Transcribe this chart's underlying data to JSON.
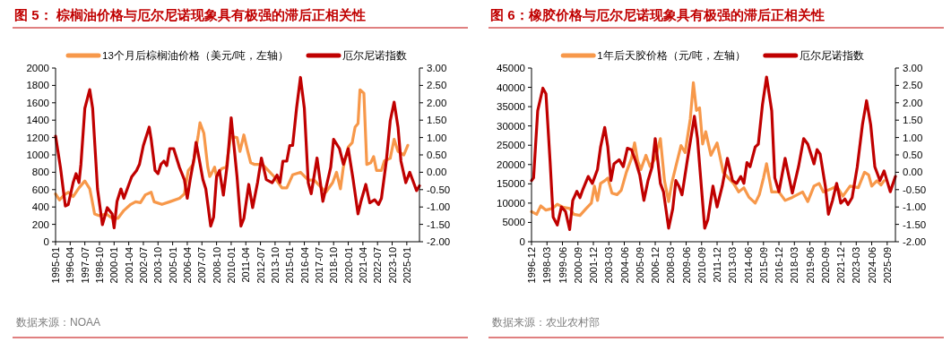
{
  "chart_data": [
    {
      "type": "line",
      "title": "图 5：  棕榈油价格与厄尔尼诺现象具有极强的滞后正相关性",
      "legend": "top",
      "xlim": [
        "1995-01",
        "2026-02"
      ],
      "xticks": [
        "1995-01",
        "1996-04",
        "1997-07",
        "1998-10",
        "2000-01",
        "2001-04",
        "2002-07",
        "2003-10",
        "2005-01",
        "2006-04",
        "2007-07",
        "2008-10",
        "2010-01",
        "2011-04",
        "2012-07",
        "2013-10",
        "2015-01",
        "2016-04",
        "2017-07",
        "2018-10",
        "2020-01",
        "2021-04",
        "2022-07",
        "2023-10",
        "2025-01"
      ],
      "ylim": [
        0,
        2000
      ],
      "yticks": [
        0,
        200,
        400,
        600,
        800,
        1000,
        1200,
        1400,
        1600,
        1800,
        2000
      ],
      "y2lim": [
        -2,
        3
      ],
      "y2ticks": [
        {
          "value": -2,
          "label": "-2.00"
        },
        {
          "value": -1.5,
          "label": "-1.50"
        },
        {
          "value": -1,
          "label": "-1.00"
        },
        {
          "value": -0.5,
          "label": "-0.50"
        },
        {
          "value": 0,
          "label": "0.00"
        },
        {
          "value": 0.5,
          "label": "0.50"
        },
        {
          "value": 1,
          "label": "1.00"
        },
        {
          "value": 1.5,
          "label": "1.50"
        },
        {
          "value": 2,
          "label": "2.00"
        },
        {
          "value": 2.5,
          "label": "2.50"
        },
        {
          "value": 3,
          "label": "3.00"
        }
      ],
      "annotations": [
        "数据来源：NOAA"
      ],
      "series": [
        {
          "name": "13个月后棕榈油价格（美元/吨，左轴）",
          "color": "#f7984a",
          "x": [
            "1995-01",
            "1995-05",
            "1995-10",
            "1996-02",
            "1996-07",
            "1997-01",
            "1997-07",
            "1997-12",
            "1998-02",
            "1998-05",
            "1998-10",
            "1999-05",
            "1999-11",
            "2000-05",
            "2000-11",
            "2001-06",
            "2001-11",
            "2002-04",
            "2002-09",
            "2003-03",
            "2003-06",
            "2004-02",
            "2004-10",
            "2005-08",
            "2006-01",
            "2006-05",
            "2006-10",
            "2007-03",
            "2007-05",
            "2007-09",
            "2008-01",
            "2008-03",
            "2008-05",
            "2008-08",
            "2008-10",
            "2009-03",
            "2009-08",
            "2009-12",
            "2010-01",
            "2010-07",
            "2010-10",
            "2011-02",
            "2011-06",
            "2011-09",
            "2012-01",
            "2012-09",
            "2013-03",
            "2013-09",
            "2014-05",
            "2014-10",
            "2015-04",
            "2015-12",
            "2016-08",
            "2017-02",
            "2017-08",
            "2018-02",
            "2018-09",
            "2019-01",
            "2019-05",
            "2019-08",
            "2020-01",
            "2020-05",
            "2020-08",
            "2020-11",
            "2021-01",
            "2021-05",
            "2021-08",
            "2021-12",
            "2022-03",
            "2022-06",
            "2022-11",
            "2023-02",
            "2023-08",
            "2023-12",
            "2024-04",
            "2024-10",
            "2025-02"
          ],
          "values": [
            550,
            480,
            540,
            570,
            520,
            620,
            700,
            610,
            500,
            320,
            300,
            320,
            270,
            270,
            360,
            430,
            460,
            450,
            540,
            570,
            460,
            430,
            460,
            500,
            550,
            820,
            890,
            1210,
            1370,
            1250,
            860,
            750,
            790,
            860,
            750,
            840,
            860,
            1180,
            1210,
            1200,
            1040,
            1230,
            1040,
            910,
            890,
            890,
            820,
            750,
            620,
            620,
            770,
            800,
            710,
            710,
            640,
            570,
            680,
            800,
            610,
            860,
            1090,
            1140,
            1320,
            1360,
            1750,
            1710,
            890,
            910,
            980,
            820,
            820,
            930,
            960,
            1180,
            1040,
            1000,
            1110
          ]
        },
        {
          "name": "厄尔尼诺指数",
          "color": "#c00000",
          "axis": "y2",
          "x": [
            "1995-01",
            "1995-06",
            "1995-11",
            "1996-02",
            "1996-07",
            "1996-10",
            "1997-01",
            "1997-03",
            "1997-07",
            "1997-12",
            "1998-03",
            "1998-08",
            "1999-01",
            "1999-06",
            "1999-11",
            "2000-01",
            "2000-04",
            "2000-08",
            "2000-11",
            "2001-07",
            "2001-12",
            "2002-03",
            "2002-07",
            "2003-01",
            "2003-03",
            "2003-07",
            "2003-10",
            "2004-01",
            "2004-04",
            "2004-07",
            "2004-10",
            "2005-02",
            "2005-08",
            "2006-01",
            "2006-04",
            "2006-07",
            "2006-11",
            "2007-01",
            "2007-04",
            "2007-08",
            "2007-11",
            "2008-04",
            "2008-07",
            "2008-10",
            "2009-01",
            "2009-05",
            "2009-09",
            "2010-01",
            "2010-07",
            "2010-11",
            "2011-02",
            "2011-07",
            "2011-11",
            "2012-04",
            "2012-08",
            "2013-01",
            "2013-07",
            "2013-12",
            "2014-03",
            "2014-06",
            "2014-10",
            "2015-01",
            "2015-04",
            "2015-08",
            "2015-12",
            "2016-04",
            "2016-08",
            "2016-11",
            "2017-05",
            "2017-11",
            "2018-07",
            "2018-10",
            "2019-04",
            "2019-08",
            "2020-01",
            "2020-06",
            "2020-11",
            "2021-02",
            "2021-07",
            "2021-11",
            "2022-04",
            "2022-08",
            "2022-11",
            "2023-04",
            "2023-08",
            "2023-12",
            "2024-04",
            "2024-07",
            "2024-12",
            "2025-04",
            "2025-08",
            "2025-11",
            "2026-02"
          ],
          "values": [
            1.04,
            0.14,
            -0.97,
            -0.93,
            -0.3,
            -0.04,
            -0.3,
            0.23,
            1.84,
            2.38,
            1.84,
            -0.48,
            -1.51,
            -1.02,
            -1.2,
            -1.6,
            -0.84,
            -0.48,
            -0.75,
            -0.13,
            0.05,
            0.23,
            0.77,
            1.3,
            0.95,
            0.05,
            -0.04,
            0.23,
            0.32,
            0.19,
            0.68,
            0.68,
            0.14,
            -0.21,
            -0.75,
            -0.21,
            0.41,
            0.86,
            0.41,
            -0.21,
            -0.48,
            -1.55,
            -1.29,
            -0.13,
            0.05,
            -0.66,
            0.23,
            1.57,
            -0.13,
            -1.55,
            -1.33,
            -0.35,
            -1.02,
            -0.3,
            0.41,
            -0.21,
            -0.3,
            -0.08,
            -0.3,
            0.32,
            0.32,
            0.77,
            0.77,
            1.84,
            2.73,
            1.84,
            -0.3,
            -0.62,
            0.41,
            -0.84,
            0.14,
            0.95,
            0.68,
            0.23,
            0.68,
            -0.21,
            -1.2,
            -0.84,
            -0.35,
            -0.88,
            -0.79,
            -0.93,
            -0.75,
            0.32,
            1.48,
            2.02,
            1.3,
            0.32,
            -0.3,
            0.0,
            -0.3,
            -0.53,
            -0.39
          ]
        }
      ]
    },
    {
      "type": "line",
      "title": "图 6：橡胶价格与厄尔尼诺现象具有极强的滞后正相关性",
      "legend": "top",
      "xlim": [
        "1996-12",
        "2026-05"
      ],
      "xticks": [
        "1996-12",
        "1998-03",
        "1999-06",
        "2000-09",
        "2001-12",
        "2003-03",
        "2004-06",
        "2005-09",
        "2006-12",
        "2008-03",
        "2009-06",
        "2010-09",
        "2011-12",
        "2013-03",
        "2014-06",
        "2015-09",
        "2016-12",
        "2018-03",
        "2019-06",
        "2020-09",
        "2021-12",
        "2023-03",
        "2024-06",
        "2025-09"
      ],
      "ylim": [
        0,
        45000
      ],
      "yticks": [
        0,
        5000,
        10000,
        15000,
        20000,
        25000,
        30000,
        35000,
        40000,
        45000
      ],
      "y2lim": [
        -2,
        3
      ],
      "y2ticks": [
        {
          "value": -2,
          "label": "-2.00"
        },
        {
          "value": -1.5,
          "label": "-1.50"
        },
        {
          "value": -1,
          "label": "-1.00"
        },
        {
          "value": -0.5,
          "label": "-0.50"
        },
        {
          "value": 0,
          "label": "0.00"
        },
        {
          "value": 0.5,
          "label": "0.50"
        },
        {
          "value": 1,
          "label": "1.00"
        },
        {
          "value": 1.5,
          "label": "1.50"
        },
        {
          "value": 2,
          "label": "2.00"
        },
        {
          "value": 2.5,
          "label": "2.50"
        },
        {
          "value": 3,
          "label": "3.00"
        }
      ],
      "annotations": [
        "数据来源：农业农村部"
      ],
      "series": [
        {
          "name": "1年后天胶价格（元/吨，左轴）",
          "color": "#f7984a",
          "x": [
            "1996-12",
            "1997-05",
            "1997-09",
            "1998-02",
            "1998-08",
            "1999-01",
            "1999-07",
            "2000-01",
            "2000-05",
            "2000-11",
            "2001-05",
            "2001-10",
            "2002-01",
            "2002-04",
            "2002-07",
            "2002-11",
            "2003-02",
            "2003-06",
            "2003-11",
            "2004-03",
            "2004-08",
            "2005-01",
            "2005-04",
            "2005-07",
            "2005-10",
            "2006-03",
            "2006-07",
            "2006-12",
            "2007-05",
            "2007-09",
            "2008-01",
            "2008-04",
            "2008-08",
            "2009-01",
            "2009-05",
            "2009-10",
            "2010-01",
            "2010-04",
            "2010-07",
            "2010-10",
            "2011-01",
            "2011-06",
            "2011-12",
            "2012-06",
            "2012-12",
            "2013-04",
            "2013-09",
            "2014-02",
            "2014-07",
            "2015-01",
            "2015-05",
            "2015-09",
            "2015-12",
            "2016-05",
            "2016-12",
            "2017-06",
            "2018-01",
            "2018-11",
            "2019-04",
            "2019-10",
            "2020-03",
            "2020-07",
            "2021-02",
            "2021-08",
            "2022-02",
            "2022-09",
            "2023-05",
            "2023-11",
            "2024-03",
            "2024-06",
            "2024-11",
            "2025-03",
            "2025-06"
          ],
          "values": [
            7800,
            7100,
            9300,
            8200,
            8600,
            9700,
            8900,
            8600,
            7100,
            6800,
            8600,
            10000,
            14400,
            10700,
            15100,
            15800,
            16500,
            12600,
            12200,
            13300,
            18000,
            21600,
            25600,
            20900,
            18700,
            22400,
            19500,
            21600,
            26700,
            15800,
            10400,
            15100,
            19500,
            24900,
            23100,
            31800,
            41200,
            34000,
            34700,
            25300,
            28500,
            22400,
            25600,
            18000,
            16200,
            15100,
            12900,
            14000,
            11500,
            10000,
            12200,
            16500,
            20200,
            12900,
            12900,
            10700,
            11500,
            12900,
            10400,
            14400,
            15100,
            12900,
            13600,
            14400,
            11800,
            14400,
            14000,
            18000,
            17300,
            14400,
            15800,
            14700,
            15800
          ]
        },
        {
          "name": "厄尔尼诺指数",
          "color": "#c00000",
          "axis": "y2",
          "x": [
            "1996-12",
            "1997-02",
            "1997-06",
            "1997-11",
            "1998-02",
            "1998-06",
            "1998-09",
            "1999-01",
            "1999-05",
            "1999-09",
            "2000-01",
            "2000-04",
            "2000-08",
            "2000-11",
            "2001-02",
            "2001-07",
            "2001-11",
            "2002-04",
            "2002-07",
            "2002-11",
            "2003-02",
            "2003-05",
            "2003-08",
            "2004-01",
            "2004-05",
            "2004-09",
            "2005-01",
            "2005-05",
            "2005-09",
            "2006-01",
            "2006-05",
            "2006-09",
            "2006-12",
            "2007-05",
            "2007-08",
            "2008-01",
            "2008-05",
            "2008-08",
            "2008-11",
            "2009-02",
            "2009-07",
            "2010-02",
            "2010-05",
            "2010-12",
            "2011-03",
            "2011-08",
            "2011-12",
            "2012-05",
            "2012-10",
            "2013-03",
            "2013-07",
            "2013-11",
            "2014-02",
            "2014-05",
            "2014-08",
            "2015-01",
            "2015-04",
            "2015-08",
            "2015-12",
            "2016-05",
            "2016-08",
            "2016-12",
            "2017-06",
            "2018-01",
            "2018-07",
            "2018-12",
            "2019-04",
            "2019-10",
            "2020-01",
            "2020-04",
            "2020-09",
            "2020-12",
            "2021-04",
            "2021-08",
            "2021-12",
            "2022-04",
            "2022-07",
            "2022-11",
            "2023-04",
            "2023-09",
            "2024-01",
            "2024-05",
            "2024-09",
            "2025-02",
            "2025-06",
            "2025-12",
            "2026-05"
          ],
          "values": [
            -0.24,
            -0.16,
            1.77,
            2.42,
            2.26,
            0.32,
            -1.29,
            -1.52,
            -1.0,
            -1.13,
            -1.65,
            -0.81,
            -0.55,
            -0.73,
            -0.48,
            -0.12,
            -0.32,
            0.08,
            0.73,
            1.29,
            0.73,
            -0.24,
            0.24,
            0.36,
            0.16,
            0.69,
            0.65,
            0.32,
            -0.08,
            -0.81,
            -0.24,
            0.16,
            0.97,
            -0.32,
            -0.56,
            -1.61,
            -1.05,
            -0.24,
            -0.4,
            -0.65,
            0.32,
            1.61,
            0.97,
            -1.61,
            -1.37,
            -0.4,
            -1.0,
            -0.4,
            0.4,
            -0.24,
            -0.32,
            -0.12,
            -0.32,
            0.28,
            0.16,
            0.73,
            0.81,
            1.94,
            2.74,
            1.77,
            -0.16,
            -0.56,
            0.4,
            -0.6,
            0.16,
            0.97,
            0.81,
            0.24,
            0.65,
            0.52,
            -0.4,
            -1.21,
            -0.81,
            -0.32,
            -0.89,
            -0.77,
            -0.93,
            -0.73,
            0.16,
            1.37,
            2.06,
            1.37,
            0.16,
            -0.24,
            0.04,
            -0.56,
            -0.12
          ]
        }
      ]
    }
  ]
}
